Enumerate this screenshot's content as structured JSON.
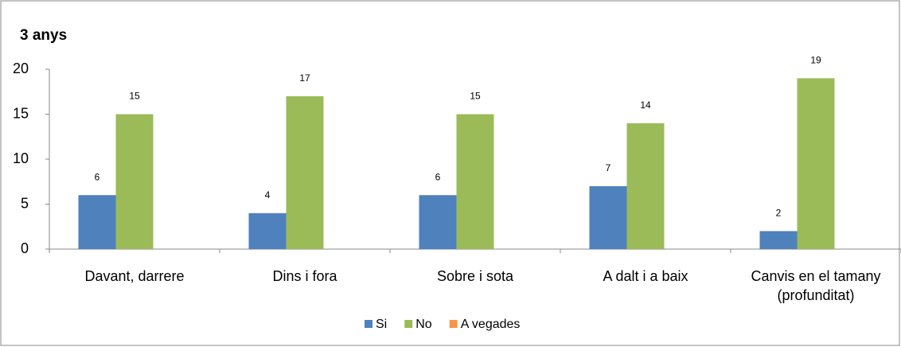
{
  "chart_data": {
    "type": "bar",
    "title": "3 anys",
    "categories": [
      "Davant, darrere",
      "Dins i fora",
      "Sobre i sota",
      "A dalt i a baix",
      "Canvis en el tamany (profunditat)"
    ],
    "series": [
      {
        "name": "Si",
        "color": "#4f81bd",
        "values": [
          6,
          4,
          6,
          7,
          2
        ]
      },
      {
        "name": "No",
        "color": "#9bbb59",
        "values": [
          15,
          17,
          15,
          14,
          19
        ]
      },
      {
        "name": "A vegades",
        "color": "#f79646",
        "values": [
          null,
          null,
          null,
          null,
          null
        ]
      }
    ],
    "ylim": [
      0,
      20
    ],
    "yticks": [
      0,
      5,
      10,
      15,
      20
    ],
    "grid": false,
    "legend": "bottom"
  }
}
